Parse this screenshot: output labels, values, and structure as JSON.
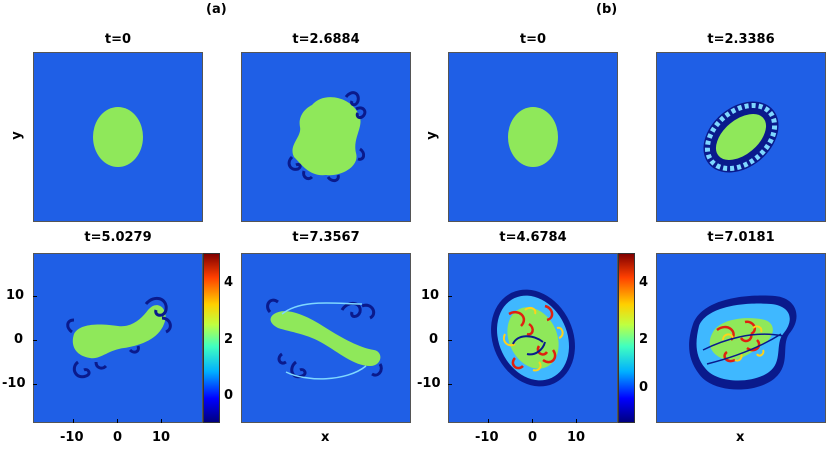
{
  "figure": {
    "parts": [
      {
        "tag": "(a)",
        "panels": [
          {
            "title": "t=0"
          },
          {
            "title": "t=2.6884"
          },
          {
            "title": "t=5.0279"
          },
          {
            "title": "t=7.3567"
          }
        ]
      },
      {
        "tag": "(b)",
        "panels": [
          {
            "title": "t=0"
          },
          {
            "title": "t=2.3386"
          },
          {
            "title": "t=4.6784"
          },
          {
            "title": "t=7.0181"
          }
        ]
      }
    ],
    "y_label": "y",
    "x_label": "x",
    "x_ticks": [
      "-10",
      "0",
      "10"
    ],
    "y_ticks": [
      "10",
      "0",
      "-10"
    ],
    "colorbar_ticks": [
      "4",
      "2",
      "0"
    ]
  },
  "colors": {
    "background_field": "#1f5fe6",
    "blob": "#8fe85a",
    "vortex_dark": "#0a1a8c",
    "vortex_light": "#7fd8ff"
  }
}
